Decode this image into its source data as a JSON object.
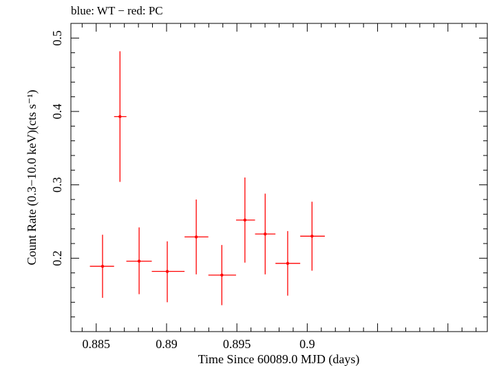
{
  "chart_data": {
    "type": "scatter",
    "title": "blue: WT − red: PC",
    "xlabel": "Time Since 60089.0 MJD (days)",
    "ylabel": "Count Rate (0.3−10.0 keV)(cts s⁻¹)",
    "xlim": [
      0.8832,
      0.9128
    ],
    "ylim": [
      0.1,
      0.52
    ],
    "xticks": [
      0.885,
      0.89,
      0.895,
      0.9
    ],
    "xtick_labels": [
      "0.885",
      "0.89",
      "0.895",
      "0.9"
    ],
    "yticks": [
      0.2,
      0.3,
      0.4,
      0.5
    ],
    "ytick_labels": [
      "0.2",
      "0.3",
      "0.4",
      "0.5"
    ],
    "grid": false,
    "series": [
      {
        "color": "#ff0000",
        "points": [
          {
            "x": 0.88545,
            "y": 0.189,
            "xerr": [
              0.88455,
              0.88627
            ],
            "yerr": [
              0.146,
              0.232
            ]
          },
          {
            "x": 0.88669,
            "y": 0.393,
            "xerr": [
              0.88627,
              0.88715
            ],
            "yerr": [
              0.304,
              0.482
            ]
          },
          {
            "x": 0.88805,
            "y": 0.196,
            "xerr": [
              0.88714,
              0.88895
            ],
            "yerr": [
              0.151,
              0.242
            ]
          },
          {
            "x": 0.89005,
            "y": 0.182,
            "xerr": [
              0.88895,
              0.89128
            ],
            "yerr": [
              0.14,
              0.223
            ]
          },
          {
            "x": 0.89211,
            "y": 0.229,
            "xerr": [
              0.89128,
              0.89297
            ],
            "yerr": [
              0.178,
              0.28
            ]
          },
          {
            "x": 0.89393,
            "y": 0.177,
            "xerr": [
              0.89297,
              0.89494
            ],
            "yerr": [
              0.136,
              0.218
            ]
          },
          {
            "x": 0.89557,
            "y": 0.252,
            "xerr": [
              0.89494,
              0.89629
            ],
            "yerr": [
              0.194,
              0.31
            ]
          },
          {
            "x": 0.89701,
            "y": 0.233,
            "xerr": [
              0.89629,
              0.89774
            ],
            "yerr": [
              0.178,
              0.288
            ]
          },
          {
            "x": 0.89861,
            "y": 0.193,
            "xerr": [
              0.89774,
              0.8995
            ],
            "yerr": [
              0.149,
              0.237
            ]
          },
          {
            "x": 0.90034,
            "y": 0.23,
            "xerr": [
              0.8995,
              0.90125
            ],
            "yerr": [
              0.183,
              0.277
            ]
          }
        ]
      }
    ]
  }
}
